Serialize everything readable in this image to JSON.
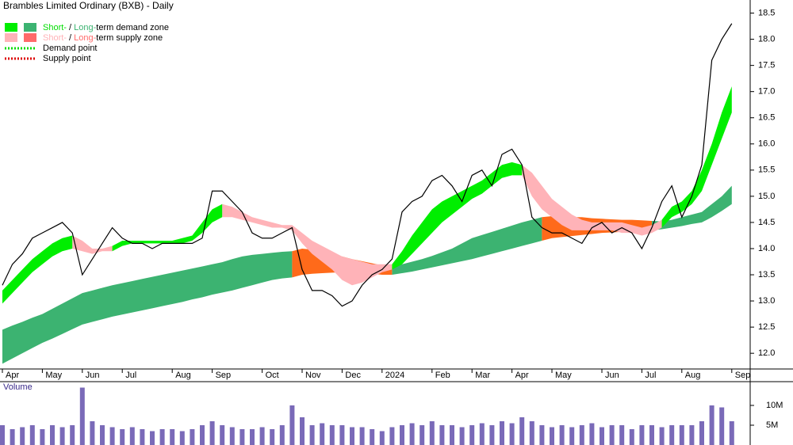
{
  "chart_data": {
    "type": "zone-line",
    "title": "Brambles Limited Ordinary (BXB) - Daily",
    "legend": [
      {
        "short": "Short-",
        "sep": "/",
        "long": "Long-",
        "text": "term demand zone"
      },
      {
        "short": "Short-",
        "sep": "/",
        "long": "Long-",
        "text": "term supply zone"
      },
      {
        "text": "Demand point",
        "color": "#00dd00"
      },
      {
        "text": "Supply point",
        "color": "#dd0000"
      }
    ],
    "categories": [
      "Apr",
      null,
      null,
      null,
      "May",
      null,
      null,
      null,
      "Jun",
      null,
      null,
      null,
      "Jul",
      null,
      null,
      null,
      null,
      "Aug",
      null,
      null,
      null,
      "Sep",
      null,
      null,
      null,
      null,
      "Oct",
      null,
      null,
      null,
      "Nov",
      null,
      null,
      null,
      "Dec",
      null,
      null,
      null,
      "2024",
      null,
      null,
      null,
      null,
      "Feb",
      null,
      null,
      null,
      "Mar",
      null,
      null,
      null,
      "Apr",
      null,
      null,
      null,
      "May",
      null,
      null,
      null,
      null,
      "Jun",
      null,
      null,
      null,
      "Jul",
      null,
      null,
      null,
      "Aug",
      null,
      null,
      null,
      null,
      "Sep"
    ],
    "ylim": [
      11.7,
      18.75
    ],
    "yticks": [
      {
        "value": 12,
        "label": "12.0"
      },
      12.5,
      {
        "value": 13,
        "label": "13.0"
      },
      13.5,
      {
        "value": 14,
        "label": "14.0"
      },
      14.5,
      {
        "value": 15,
        "label": "15.0"
      },
      15.5,
      {
        "value": 16,
        "label": "16.0"
      },
      16.5,
      {
        "value": 17,
        "label": "17.0"
      },
      17.5,
      {
        "value": 18,
        "label": "18.0"
      },
      18.5
    ],
    "price": {
      "color": "#000000",
      "values": [
        13.3,
        13.7,
        13.9,
        14.2,
        14.3,
        14.4,
        14.5,
        14.3,
        13.5,
        13.8,
        14.1,
        14.4,
        14.2,
        14.1,
        14.1,
        14.0,
        14.1,
        14.1,
        14.1,
        14.1,
        14.2,
        15.1,
        15.1,
        14.9,
        14.7,
        14.3,
        14.2,
        14.2,
        14.3,
        14.4,
        13.6,
        13.2,
        13.2,
        13.1,
        12.9,
        13.0,
        13.3,
        13.5,
        13.6,
        13.8,
        14.7,
        14.9,
        15.0,
        15.3,
        15.4,
        15.2,
        14.9,
        15.4,
        15.5,
        15.2,
        15.8,
        15.9,
        15.6,
        14.6,
        14.4,
        14.3,
        14.3,
        14.2,
        14.1,
        14.4,
        14.5,
        14.3,
        14.4,
        14.3,
        14.0,
        14.4,
        14.9,
        15.2,
        14.6,
        15.0,
        15.6,
        17.6,
        18.0,
        18.3
      ]
    },
    "zones": [
      {
        "color": "#3cb371",
        "lower": [
          11.8,
          11.9,
          12.0,
          12.1,
          12.2,
          12.28,
          12.37,
          12.46,
          12.55,
          12.6,
          12.65,
          12.7,
          12.74,
          12.78,
          12.82,
          12.86,
          12.9,
          12.94,
          12.98,
          13.03,
          13.07,
          13.12,
          13.16,
          13.2,
          13.25,
          13.3,
          13.35,
          13.4,
          13.43,
          13.45,
          null,
          null,
          null,
          null,
          null,
          null,
          null,
          null,
          null,
          13.5,
          13.53,
          13.56,
          13.6,
          13.64,
          13.68,
          13.72,
          13.76,
          13.8,
          13.85,
          13.9,
          13.95,
          14.0,
          14.05,
          14.1,
          14.15,
          null,
          null,
          null,
          null,
          null,
          null,
          null,
          null,
          null,
          null,
          14.35,
          14.37,
          14.4,
          14.43,
          14.47,
          14.5,
          14.6,
          14.72,
          14.85
        ],
        "upper": [
          12.45,
          12.53,
          12.6,
          12.68,
          12.75,
          12.85,
          12.95,
          13.05,
          13.15,
          13.2,
          13.25,
          13.3,
          13.34,
          13.38,
          13.42,
          13.46,
          13.5,
          13.54,
          13.58,
          13.62,
          13.66,
          13.7,
          13.74,
          13.8,
          13.85,
          13.88,
          13.9,
          13.92,
          13.94,
          13.95,
          null,
          null,
          null,
          null,
          null,
          null,
          null,
          null,
          null,
          13.65,
          13.7,
          13.75,
          13.8,
          13.86,
          13.93,
          14.0,
          14.1,
          14.2,
          14.26,
          14.32,
          14.38,
          14.44,
          14.5,
          14.55,
          14.6,
          null,
          null,
          null,
          null,
          null,
          null,
          null,
          null,
          null,
          null,
          14.53,
          14.52,
          14.55,
          14.6,
          14.65,
          14.7,
          14.85,
          15.0,
          15.2
        ]
      },
      {
        "color": "#ff6a1a",
        "lower": [
          null,
          null,
          null,
          null,
          null,
          null,
          null,
          null,
          null,
          null,
          null,
          null,
          null,
          null,
          null,
          null,
          null,
          null,
          null,
          null,
          null,
          null,
          null,
          null,
          null,
          null,
          null,
          null,
          null,
          13.45,
          13.5,
          13.52,
          13.53,
          13.54,
          13.55,
          13.55,
          13.55,
          13.52,
          13.5,
          13.5,
          null,
          null,
          null,
          null,
          null,
          null,
          null,
          null,
          null,
          null,
          null,
          null,
          null,
          null,
          14.15,
          14.2,
          14.22,
          14.24,
          14.26,
          14.28,
          14.3,
          14.31,
          14.32,
          14.33,
          14.34,
          14.35,
          null,
          null,
          null,
          null,
          null,
          null,
          null,
          null
        ],
        "upper": [
          null,
          null,
          null,
          null,
          null,
          null,
          null,
          null,
          null,
          null,
          null,
          null,
          null,
          null,
          null,
          null,
          null,
          null,
          null,
          null,
          null,
          null,
          null,
          null,
          null,
          null,
          null,
          null,
          null,
          13.95,
          14.0,
          13.98,
          13.95,
          13.9,
          13.85,
          13.8,
          13.76,
          13.72,
          13.68,
          13.65,
          null,
          null,
          null,
          null,
          null,
          null,
          null,
          null,
          null,
          null,
          null,
          null,
          null,
          null,
          14.6,
          14.62,
          14.62,
          14.6,
          14.6,
          14.58,
          14.57,
          14.56,
          14.55,
          14.55,
          14.54,
          14.53,
          null,
          null,
          null,
          null,
          null,
          null,
          null,
          null
        ]
      },
      {
        "color": "#ffb3b8",
        "lower": [
          null,
          null,
          null,
          null,
          null,
          null,
          null,
          14.0,
          13.95,
          13.9,
          13.95,
          13.95,
          null,
          null,
          null,
          null,
          null,
          null,
          null,
          null,
          null,
          null,
          14.6,
          14.6,
          14.55,
          14.5,
          14.45,
          14.4,
          14.4,
          14.35,
          14.1,
          13.9,
          13.75,
          13.6,
          13.4,
          13.3,
          13.35,
          13.45,
          13.55,
          13.6,
          null,
          null,
          null,
          null,
          null,
          null,
          null,
          null,
          null,
          null,
          null,
          null,
          15.4,
          15.0,
          14.75,
          14.6,
          14.45,
          14.35,
          14.35,
          14.35,
          14.35,
          14.35,
          14.3,
          14.3,
          14.25,
          14.3,
          14.4,
          null,
          null,
          null,
          null,
          null,
          null,
          null
        ],
        "upper": [
          null,
          null,
          null,
          null,
          null,
          null,
          null,
          14.25,
          14.15,
          14.0,
          14.0,
          14.05,
          null,
          null,
          null,
          null,
          null,
          null,
          null,
          null,
          null,
          null,
          14.85,
          14.8,
          14.7,
          14.6,
          14.55,
          14.5,
          14.45,
          14.45,
          14.3,
          14.15,
          14.05,
          13.95,
          13.85,
          13.8,
          13.75,
          13.7,
          13.7,
          13.7,
          null,
          null,
          null,
          null,
          null,
          null,
          null,
          null,
          null,
          null,
          null,
          null,
          15.6,
          15.45,
          15.2,
          14.95,
          14.8,
          14.65,
          14.55,
          14.5,
          14.5,
          14.5,
          14.5,
          14.45,
          14.4,
          14.45,
          14.55,
          null,
          null,
          null,
          null,
          null,
          null,
          null
        ]
      },
      {
        "color": "#00ee00",
        "lower": [
          12.95,
          13.15,
          13.35,
          13.55,
          13.7,
          13.85,
          13.95,
          14.0,
          null,
          null,
          null,
          13.95,
          14.05,
          14.1,
          14.1,
          14.1,
          14.1,
          14.1,
          14.1,
          14.15,
          14.3,
          14.5,
          14.6,
          null,
          null,
          null,
          null,
          null,
          null,
          null,
          null,
          null,
          null,
          null,
          null,
          null,
          null,
          null,
          null,
          13.6,
          13.7,
          13.9,
          14.1,
          14.3,
          14.5,
          14.65,
          14.8,
          14.95,
          15.05,
          15.2,
          15.35,
          15.4,
          15.4,
          null,
          null,
          null,
          null,
          null,
          null,
          null,
          null,
          null,
          null,
          null,
          null,
          null,
          14.4,
          14.6,
          14.7,
          14.85,
          15.1,
          15.6,
          16.1,
          16.6
        ],
        "upper": [
          13.2,
          13.4,
          13.6,
          13.8,
          13.95,
          14.1,
          14.2,
          14.25,
          null,
          null,
          null,
          14.05,
          14.15,
          14.15,
          14.15,
          14.15,
          14.15,
          14.15,
          14.2,
          14.25,
          14.5,
          14.75,
          14.85,
          null,
          null,
          null,
          null,
          null,
          null,
          null,
          null,
          null,
          null,
          null,
          null,
          null,
          null,
          null,
          null,
          13.7,
          13.95,
          14.25,
          14.5,
          14.75,
          14.9,
          15.0,
          15.1,
          15.2,
          15.3,
          15.45,
          15.6,
          15.65,
          15.6,
          null,
          null,
          null,
          null,
          null,
          null,
          null,
          null,
          null,
          null,
          null,
          null,
          null,
          14.55,
          14.8,
          14.9,
          15.1,
          15.5,
          16.0,
          16.6,
          17.1
        ]
      }
    ],
    "volume": {
      "label": "Volume",
      "color": "#7a6ab8",
      "ylim": [
        0,
        16
      ],
      "yticks": [
        {
          "value": 5,
          "label": "5M"
        },
        {
          "value": 10,
          "label": "10M"
        }
      ],
      "values": [
        5,
        4,
        4.5,
        5,
        4,
        5,
        4.5,
        5,
        14.5,
        6,
        5,
        4.5,
        4,
        4.5,
        4,
        3.5,
        4,
        4,
        3.5,
        4,
        5,
        6,
        5,
        4.5,
        4,
        4,
        4.5,
        4,
        5,
        10,
        7,
        5,
        5.5,
        5,
        5,
        4.5,
        4.5,
        4,
        3.5,
        4.5,
        5,
        5.5,
        5,
        6,
        5,
        5,
        4.5,
        5,
        5.5,
        5,
        6,
        5.5,
        7,
        6,
        5,
        4.5,
        5,
        4.5,
        5,
        5.5,
        4.5,
        5,
        5,
        4,
        5,
        5,
        4.5,
        5,
        5,
        5,
        6,
        10,
        9.5,
        6
      ]
    }
  }
}
